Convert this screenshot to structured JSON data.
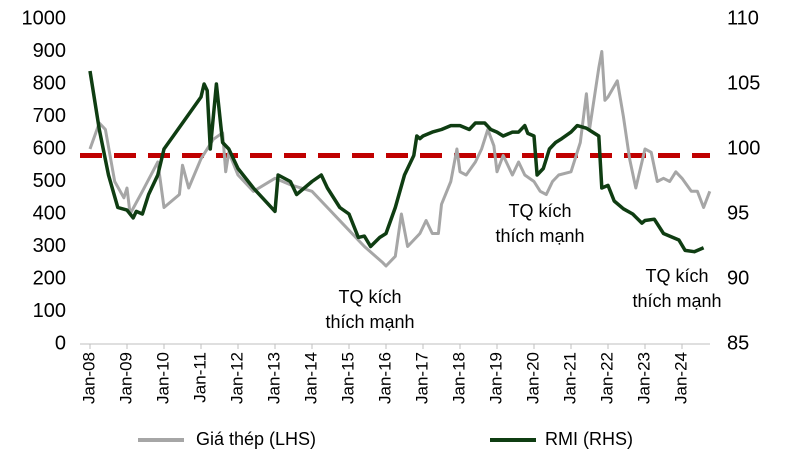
{
  "chart_data": {
    "type": "line",
    "ylim": [
      0,
      1000
    ],
    "yticks": [
      0,
      100,
      200,
      300,
      400,
      500,
      600,
      700,
      800,
      900,
      1000
    ],
    "y2lim": [
      85,
      110
    ],
    "y2ticks": [
      85,
      90,
      95,
      100,
      105,
      110
    ],
    "xticks": [
      "Jan-08",
      "Jan-09",
      "Jan-10",
      "Jan-11",
      "Jan-12",
      "Jan-13",
      "Jan-14",
      "Jan-15",
      "Jan-16",
      "Jan-17",
      "Jan-18",
      "Jan-19",
      "Jan-20",
      "Jan-21",
      "Jan-22",
      "Jan-23",
      "Jan-24"
    ],
    "reference_line": {
      "value": 99.5,
      "axis": "y2",
      "color": "#c00000"
    },
    "legend": "bottom",
    "annotations": [
      {
        "lines": [
          "TQ kích",
          "thích mạnh"
        ]
      },
      {
        "lines": [
          "TQ kích",
          "thích mạnh"
        ]
      },
      {
        "lines": [
          "TQ kích",
          "thích mạnh"
        ]
      }
    ],
    "series": [
      {
        "name": "Giá thép (LHS)",
        "color": "#a6a6a6",
        "axis": "y",
        "x": [
          "Jan-08",
          "Apr-08",
          "Jun-08",
          "Sep-08",
          "Dec-08",
          "Jan-09",
          "Feb-09",
          "Jun-09",
          "Nov-09",
          "Jan-10",
          "Jun-10",
          "Jul-10",
          "Sep-10",
          "Jan-11",
          "May-11",
          "Aug-11",
          "Sep-11",
          "Oct-11",
          "Jan-12",
          "Jun-12",
          "Jan-13",
          "Jun-13",
          "Jan-14",
          "Jun-14",
          "Jan-15",
          "Jun-15",
          "Dec-15",
          "Jan-16",
          "Apr-16",
          "Jun-16",
          "Aug-16",
          "Dec-16",
          "Feb-17",
          "Apr-17",
          "Jun-17",
          "Jul-17",
          "Oct-17",
          "Dec-17",
          "Jan-18",
          "Mar-18",
          "Jun-18",
          "Aug-18",
          "Oct-18",
          "Dec-18",
          "Jan-19",
          "Mar-19",
          "Jun-19",
          "Aug-19",
          "Oct-19",
          "Jan-20",
          "Mar-20",
          "May-20",
          "Jul-20",
          "Sep-20",
          "Jan-21",
          "Apr-21",
          "Jun-21",
          "Jul-21",
          "Oct-21",
          "Nov-21",
          "Dec-21",
          "Jan-22",
          "Apr-22",
          "Jun-22",
          "Aug-22",
          "Oct-22",
          "Jan-23",
          "Mar-23",
          "May-23",
          "Jul-23",
          "Sep-23",
          "Nov-23",
          "Jan-24",
          "Apr-24",
          "Jun-24",
          "Aug-24",
          "Oct-24"
        ],
        "values": [
          600,
          680,
          660,
          500,
          450,
          480,
          400,
          470,
          560,
          420,
          460,
          550,
          480,
          570,
          630,
          650,
          530,
          590,
          520,
          470,
          510,
          490,
          470,
          420,
          350,
          300,
          250,
          240,
          270,
          400,
          300,
          340,
          380,
          340,
          340,
          430,
          500,
          600,
          530,
          520,
          560,
          600,
          660,
          610,
          530,
          580,
          520,
          560,
          520,
          500,
          470,
          460,
          500,
          520,
          530,
          620,
          770,
          660,
          850,
          900,
          750,
          760,
          810,
          700,
          570,
          480,
          600,
          590,
          500,
          510,
          500,
          530,
          510,
          470,
          470,
          420,
          470
        ]
      },
      {
        "name": "RMI (RHS)",
        "color": "#0f3d12",
        "axis": "y2",
        "x": [
          "Jan-08",
          "Apr-08",
          "Jul-08",
          "Oct-08",
          "Jan-09",
          "Mar-09",
          "Apr-09",
          "Jun-09",
          "Aug-09",
          "Nov-09",
          "Jan-10",
          "Apr-10",
          "Jan-11",
          "Feb-11",
          "Mar-11",
          "Apr-11",
          "Jun-11",
          "Aug-11",
          "Oct-11",
          "Jan-12",
          "Jun-12",
          "Jan-13",
          "Feb-13",
          "Jun-13",
          "Aug-13",
          "Jan-14",
          "Apr-14",
          "Jun-14",
          "Oct-14",
          "Jan-15",
          "Apr-15",
          "Jun-15",
          "Aug-15",
          "Nov-15",
          "Jan-16",
          "Apr-16",
          "Jul-16",
          "Oct-16",
          "Nov-16",
          "Dec-16",
          "Jan-17",
          "Apr-17",
          "Jul-17",
          "Oct-17",
          "Jan-18",
          "Apr-18",
          "Jun-18",
          "Sep-18",
          "Nov-18",
          "Jan-19",
          "Mar-19",
          "Jun-19",
          "Aug-19",
          "Oct-19",
          "Nov-19",
          "Jan-20",
          "Feb-20",
          "Apr-20",
          "Jun-20",
          "Aug-20",
          "Oct-20",
          "Jan-21",
          "Mar-21",
          "Jun-21",
          "Aug-21",
          "Oct-21",
          "Nov-21",
          "Jan-22",
          "Mar-22",
          "Jun-22",
          "Sep-22",
          "Dec-22",
          "Jan-23",
          "Apr-23",
          "Jul-23",
          "Sep-23",
          "Dec-23",
          "Feb-24",
          "May-24",
          "Aug-24"
        ],
        "values": [
          106,
          101.5,
          98,
          95.5,
          95.3,
          94.7,
          95.2,
          95,
          96.5,
          98,
          100,
          101,
          104,
          105,
          104.5,
          100,
          105,
          100.5,
          100,
          98.5,
          97,
          95.2,
          98,
          97.5,
          96.5,
          97.5,
          98,
          97,
          95.5,
          95,
          93.2,
          93.3,
          92.5,
          93.2,
          93.5,
          95.5,
          98,
          99.5,
          101,
          100.8,
          101,
          101.3,
          101.5,
          101.8,
          101.8,
          101.5,
          102,
          102,
          101.5,
          101.3,
          101,
          101.3,
          101.3,
          101.8,
          101.2,
          101,
          98,
          98.5,
          100,
          100.5,
          100.8,
          101.3,
          101.8,
          101.6,
          101.3,
          101,
          97,
          97.2,
          96,
          95.4,
          95,
          94.3,
          94.5,
          94.6,
          93.5,
          93.3,
          93,
          92.2,
          92.1,
          92.4
        ]
      }
    ]
  }
}
